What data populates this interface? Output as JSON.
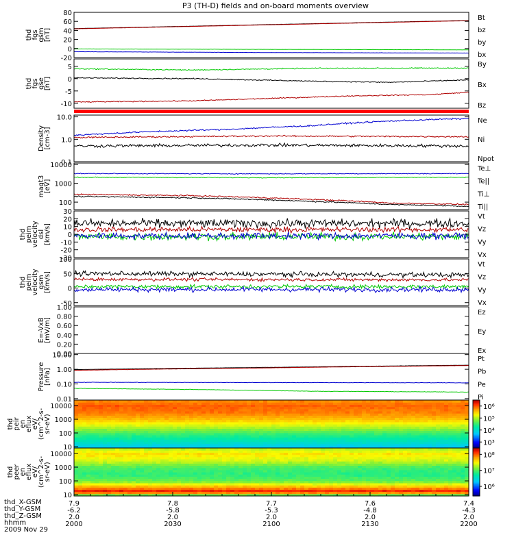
{
  "title": "P3 (TH-D) fields and on-board moments overview",
  "chart_data": [
    {
      "type": "line",
      "panel": "fgs_gsm",
      "ylabel_lines": [
        "thd",
        "fgs",
        "gsm",
        "[nT]"
      ],
      "ylim": [
        -20,
        80
      ],
      "yticks": [
        -20,
        0,
        20,
        40,
        60,
        80
      ],
      "scale": "linear",
      "legend_placement": "right",
      "series": [
        {
          "name": "Bt",
          "color": "#000000",
          "x": [
            0,
            1
          ],
          "y": [
            44,
            62
          ],
          "noise": 0.3
        },
        {
          "name": "bz",
          "color": "#b00000",
          "x": [
            0,
            1
          ],
          "y": [
            43.5,
            61.5
          ],
          "noise": 0.3
        },
        {
          "name": "by",
          "color": "#00c800",
          "x": [
            0,
            0.5,
            1
          ],
          "y": [
            -1,
            -2,
            -3
          ],
          "noise": 0.3
        },
        {
          "name": "bx",
          "color": "#0000d0",
          "x": [
            0,
            0.5,
            1
          ],
          "y": [
            -7,
            -9,
            -10
          ],
          "noise": 0.3
        }
      ]
    },
    {
      "type": "line",
      "panel": "fgs_gse",
      "ylabel_lines": [
        "thd",
        "fgs",
        "gse",
        "[nT]"
      ],
      "ylim": [
        -12,
        8
      ],
      "yticks": [
        -10,
        -5,
        0,
        5
      ],
      "scale": "linear",
      "legend_placement": "right",
      "series": [
        {
          "name": "By",
          "color": "#00c800",
          "x": [
            0,
            0.3,
            0.6,
            1
          ],
          "y": [
            4,
            3.5,
            4.2,
            4.3
          ],
          "noise": 0.3
        },
        {
          "name": "Bx",
          "color": "#000000",
          "x": [
            0,
            0.3,
            0.6,
            0.8,
            1
          ],
          "y": [
            0.3,
            0,
            -1,
            -1.5,
            -0.5
          ],
          "noise": 0.3
        },
        {
          "name": "Bz",
          "color": "#b00000",
          "x": [
            0,
            0.3,
            0.5,
            0.7,
            0.9,
            1
          ],
          "y": [
            -9.5,
            -9,
            -8,
            -7,
            -6.5,
            -5.5
          ],
          "noise": 0.3
        }
      ]
    },
    {
      "type": "line",
      "panel": "density",
      "ylabel_lines": [
        "Density",
        "[cm-3]"
      ],
      "ylim": [
        0.1,
        12
      ],
      "yticks": [
        0.1,
        1.0,
        10.0
      ],
      "ytick_labels": [
        "0.1",
        "1.0",
        "10.0"
      ],
      "scale": "log",
      "legend_placement": "right",
      "series": [
        {
          "name": "Ne",
          "color": "#b00000",
          "x": [
            0,
            0.5,
            1
          ],
          "y": [
            1.2,
            1.4,
            1.3
          ],
          "noise": 0.05
        },
        {
          "name": "Ni",
          "color": "#000000",
          "x": [
            0,
            0.5,
            1
          ],
          "y": [
            0.5,
            0.55,
            0.5
          ],
          "noise": 0.1
        },
        {
          "name": "Npot",
          "color": "#0000d0",
          "x": [
            0,
            0.2,
            0.4,
            0.6,
            0.8,
            1
          ],
          "y": [
            1.5,
            2.2,
            2.8,
            4.0,
            6.5,
            8.5
          ],
          "noise": 0.05
        }
      ]
    },
    {
      "type": "line",
      "panel": "mag_temp",
      "ylabel_lines": [
        "magt3",
        "[eV]"
      ],
      "ylim": [
        40,
        12000
      ],
      "yticks": [
        100,
        1000,
        10000
      ],
      "ytick_labels": [
        "100",
        "1000",
        "10000"
      ],
      "scale": "log",
      "legend_placement": "right",
      "series": [
        {
          "name": "Te⊥",
          "color": "#b00000",
          "x": [
            0,
            0.3,
            0.6,
            0.8,
            1
          ],
          "y": [
            260,
            220,
            140,
            90,
            75
          ],
          "noise": 0.05
        },
        {
          "name": "Te||",
          "color": "#000000",
          "x": [
            0,
            0.3,
            0.6,
            0.8,
            1
          ],
          "y": [
            200,
            170,
            110,
            75,
            60
          ],
          "noise": 0.05
        },
        {
          "name": "Ti⊥",
          "color": "#0000d0",
          "x": [
            0,
            0.5,
            1
          ],
          "y": [
            3300,
            3200,
            3300
          ],
          "noise": 0.03
        },
        {
          "name": "Ti||",
          "color": "#00c800",
          "x": [
            0,
            0.5,
            1
          ],
          "y": [
            2100,
            2000,
            2100
          ],
          "noise": 0.03
        }
      ]
    },
    {
      "type": "line",
      "panel": "peim_velocity_dsl",
      "ylabel_lines": [
        "thd",
        "peim",
        "velocity",
        "dsl",
        "[km/s]"
      ],
      "ylim": [
        -30,
        30
      ],
      "yticks": [
        -30,
        -20,
        -10,
        0,
        10,
        20,
        30
      ],
      "scale": "linear",
      "legend_placement": "right",
      "series": [
        {
          "name": "Vt",
          "color": "#000000",
          "x": [
            0,
            1
          ],
          "y": [
            14,
            14
          ],
          "noise": 8
        },
        {
          "name": "Vz",
          "color": "#b00000",
          "x": [
            0,
            1
          ],
          "y": [
            6,
            6
          ],
          "noise": 5
        },
        {
          "name": "Vy",
          "color": "#00c800",
          "x": [
            0,
            1
          ],
          "y": [
            -3,
            -3
          ],
          "noise": 7
        },
        {
          "name": "Vx",
          "color": "#0000d0",
          "x": [
            0,
            1
          ],
          "y": [
            -2,
            -2
          ],
          "noise": 6
        }
      ]
    },
    {
      "type": "line",
      "panel": "peim_velocity_gsm",
      "ylabel_lines": [
        "thd",
        "peim",
        "velocity",
        "gsm",
        "[km/s]"
      ],
      "ylim": [
        -60,
        100
      ],
      "yticks": [
        -50,
        0,
        50,
        100
      ],
      "scale": "linear",
      "legend_placement": "right",
      "series": [
        {
          "name": "Vt",
          "color": "#000000",
          "x": [
            0,
            1
          ],
          "y": [
            50,
            45
          ],
          "noise": 12
        },
        {
          "name": "Vz",
          "color": "#b00000",
          "x": [
            0,
            1
          ],
          "y": [
            30,
            28
          ],
          "noise": 8
        },
        {
          "name": "Vy",
          "color": "#00c800",
          "x": [
            0,
            1
          ],
          "y": [
            5,
            5
          ],
          "noise": 10
        },
        {
          "name": "Vx",
          "color": "#0000d0",
          "x": [
            0,
            1
          ],
          "y": [
            -5,
            -5
          ],
          "noise": 12
        }
      ]
    },
    {
      "type": "line",
      "panel": "e_vxb",
      "ylabel_lines": [
        "E=-VxB",
        "[mV/m]"
      ],
      "ylim": [
        0,
        1
      ],
      "yticks": [
        0.0,
        0.2,
        0.4,
        0.6,
        0.8,
        1.0
      ],
      "ytick_labels": [
        "0.00",
        "0.20",
        "0.40",
        "0.60",
        "0.80",
        "1.00"
      ],
      "scale": "linear",
      "legend_placement": "right",
      "series": [
        {
          "name": "Ez",
          "color": "#b00000",
          "x": [],
          "y": []
        },
        {
          "name": "Ey",
          "color": "#00c800",
          "x": [],
          "y": []
        },
        {
          "name": "Ex",
          "color": "#0000d0",
          "x": [],
          "y": []
        }
      ]
    },
    {
      "type": "line",
      "panel": "pressure",
      "ylabel_lines": [
        "Pressure",
        "[nPa]"
      ],
      "ylim": [
        0.008,
        12
      ],
      "yticks": [
        0.01,
        0.1,
        1.0,
        10.0
      ],
      "ytick_labels": [
        "0.01",
        "0.10",
        "1.00",
        "10.00"
      ],
      "scale": "log",
      "legend_placement": "right",
      "series": [
        {
          "name": "Pt",
          "color": "#000000",
          "x": [
            0,
            0.5,
            1
          ],
          "y": [
            0.95,
            1.35,
            1.9
          ],
          "noise": 0.01
        },
        {
          "name": "Pb",
          "color": "#b00000",
          "x": [
            0,
            0.5,
            1
          ],
          "y": [
            0.85,
            1.25,
            1.8
          ],
          "noise": 0.01
        },
        {
          "name": "Pe",
          "color": "#00c800",
          "x": [
            0,
            0.3,
            0.6,
            1
          ],
          "y": [
            0.05,
            0.042,
            0.032,
            0.028
          ],
          "noise": 0.02
        },
        {
          "name": "Pi",
          "color": "#0000d0",
          "x": [
            0,
            0.5,
            1
          ],
          "y": [
            0.13,
            0.125,
            0.12
          ],
          "noise": 0.02
        }
      ]
    },
    {
      "type": "heatmap",
      "panel": "peir_en_eflux",
      "ylabel_lines": [
        "thd",
        "peir",
        "en",
        "eflux",
        "eV/",
        "(cm^2-s-",
        "sr-eV)"
      ],
      "ylim": [
        8,
        25000
      ],
      "yticks": [
        10,
        100,
        1000,
        10000
      ],
      "ytick_labels": [
        "10",
        "100",
        "1000",
        "10000"
      ],
      "scale": "log",
      "colorbar": {
        "ticks": [
          3,
          4,
          5,
          6
        ],
        "tick_labels": [
          "10³",
          "10⁴",
          "10⁵",
          "10⁶"
        ],
        "range": [
          2.5,
          6.5
        ]
      },
      "profile_energy": [
        10,
        30,
        100,
        300,
        1000,
        3000,
        10000,
        25000
      ],
      "profile_log_flux": [
        3.8,
        4.2,
        4.6,
        5.1,
        5.6,
        5.9,
        6.0,
        5.8
      ]
    },
    {
      "type": "heatmap",
      "panel": "peer_en_eflux",
      "ylabel_lines": [
        "thd",
        "peer",
        "en",
        "eflux",
        "eV/",
        "(cm^2-s-",
        "sr-eV)"
      ],
      "ylim": [
        8,
        25000
      ],
      "yticks": [
        10,
        100,
        1000,
        10000
      ],
      "ytick_labels": [
        "10",
        "100",
        "1000",
        "10000"
      ],
      "scale": "log",
      "colorbar": {
        "ticks": [
          6,
          7,
          8
        ],
        "tick_labels": [
          "10⁶",
          "10⁷",
          "10⁸"
        ],
        "range": [
          5.4,
          8.4
        ]
      },
      "profile_energy": [
        8,
        12,
        20,
        50,
        100,
        300,
        1000,
        3000,
        10000,
        25000
      ],
      "profile_log_flux": [
        6.5,
        7.8,
        8.2,
        7.6,
        7.1,
        6.9,
        7.0,
        7.4,
        7.6,
        7.3
      ]
    }
  ],
  "time_axis": {
    "rows": [
      {
        "label": "thd_X-GSM",
        "values": [
          "7.9",
          "7.8",
          "7.7",
          "7.6",
          "7.4"
        ]
      },
      {
        "label": "thd_Y-GSM",
        "values": [
          "-6.2",
          "-5.8",
          "-5.3",
          "-4.8",
          "-4.3"
        ]
      },
      {
        "label": "thd_Z-GSM",
        "values": [
          "2.0",
          "2.0",
          "2.0",
          "2.0",
          "2.0"
        ]
      },
      {
        "label": "hhmm",
        "values": [
          "2000",
          "2030",
          "2100",
          "2130",
          "2200"
        ]
      }
    ],
    "date": "2009 Nov 29"
  }
}
